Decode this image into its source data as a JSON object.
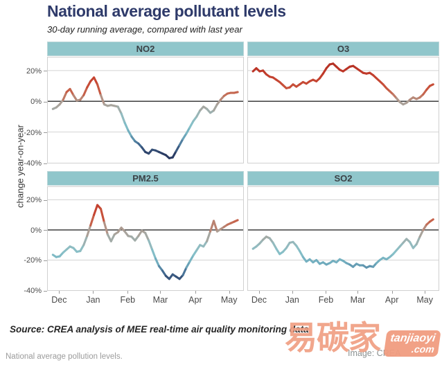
{
  "header": {
    "title": "National average pollutant levels",
    "subtitle": "30-day running average, compared with last year",
    "title_color": "#2E3A6A"
  },
  "figure": {
    "y_axis_label": "change year-on-year",
    "y_ticks": [
      {
        "label": "20%",
        "value": 20
      },
      {
        "label": "0%",
        "value": 0
      },
      {
        "label": "-20%",
        "value": -20
      },
      {
        "label": "-40%",
        "value": -40
      }
    ],
    "x_ticks": [
      "Dec",
      "Jan",
      "Feb",
      "Mar",
      "Apr",
      "May"
    ],
    "strip_color": "#90C6CB",
    "strip_text_color": "#3b4146",
    "gridline_color": "#d3d3d3",
    "zero_line_color": "#3d3d3d"
  },
  "chart_data": {
    "type": "line",
    "title": "National average pollutant levels",
    "subtitle": "30-day running average, compared with last year",
    "ylabel": "change year-on-year",
    "ylim": [
      -40,
      28.5
    ],
    "y_gridlines": [
      20,
      0,
      -20,
      -40
    ],
    "x_tick_labels": [
      "Dec",
      "Jan",
      "Feb",
      "Mar",
      "Apr",
      "May"
    ],
    "panels_order": [
      "NO2",
      "O3",
      "PM2.5",
      "SO2"
    ],
    "legend": "none",
    "color_encoding": "line segments colored by value: diverging dark blue (strong negative) to light blue, gray near zero, red for positive",
    "color_stops": [
      [
        -40,
        "#232F54"
      ],
      [
        -34,
        "#2C3E66"
      ],
      [
        -28,
        "#467096"
      ],
      [
        -22,
        "#70ACBE"
      ],
      [
        -15,
        "#86C0C8"
      ],
      [
        -9,
        "#96B9BC"
      ],
      [
        -4,
        "#A6A6A0"
      ],
      [
        0,
        "#AC9E94"
      ],
      [
        4,
        "#C3735C"
      ],
      [
        8,
        "#C8553E"
      ],
      [
        13,
        "#C64632"
      ],
      [
        20,
        "#BE3728"
      ],
      [
        28,
        "#AA2B20"
      ]
    ],
    "series": [
      {
        "name": "NO2",
        "values": [
          -5,
          -4,
          -2,
          1,
          6,
          8,
          4,
          0.5,
          1,
          4,
          9,
          13,
          15.5,
          11,
          4,
          -2,
          -3,
          -2.5,
          -3,
          -3.5,
          -8,
          -14,
          -19,
          -23,
          -26,
          -27.5,
          -30,
          -33,
          -34,
          -31.5,
          -32,
          -33,
          -34,
          -35,
          -37,
          -36.5,
          -32.5,
          -28.5,
          -24.5,
          -21,
          -17,
          -13,
          -10,
          -6,
          -3.5,
          -5,
          -7.5,
          -6,
          -2,
          1,
          3.5,
          5,
          5.5,
          5.5,
          6
        ]
      },
      {
        "name": "O3",
        "values": [
          19.5,
          21.5,
          19.5,
          20,
          17.5,
          16,
          15.5,
          14,
          12.5,
          10.5,
          8.5,
          9,
          11,
          9.5,
          11,
          12.5,
          11.5,
          13,
          14,
          13,
          15,
          18,
          21.5,
          24,
          24.5,
          22.5,
          20.5,
          19.5,
          21,
          22.5,
          23,
          21.5,
          20,
          18.5,
          18,
          18.5,
          17,
          15,
          13,
          11,
          8.5,
          6.5,
          4.5,
          2,
          -0.5,
          -2,
          -1,
          1,
          2.5,
          1.5,
          2.5,
          4.5,
          7.5,
          10,
          11
        ]
      },
      {
        "name": "PM2.5",
        "values": [
          -16.5,
          -18,
          -17.5,
          -15,
          -13,
          -11,
          -12,
          -14.5,
          -14,
          -10,
          -4,
          3,
          10,
          16.5,
          14,
          5,
          -3,
          -7.5,
          -3,
          -1.5,
          1.5,
          -1,
          -4,
          -4.5,
          -7,
          -4,
          -0.5,
          -2,
          -7,
          -13,
          -19,
          -24,
          -27,
          -30.5,
          -32.5,
          -29.5,
          -31,
          -32.5,
          -30,
          -25,
          -21,
          -17,
          -13.5,
          -10,
          -11,
          -7.5,
          -1,
          6,
          -1,
          0.5,
          2,
          3.5,
          4.5,
          5.5,
          6.5
        ]
      },
      {
        "name": "SO2",
        "values": [
          -12.5,
          -11,
          -9,
          -6.5,
          -4.5,
          -5.5,
          -8.5,
          -12.5,
          -16,
          -14.5,
          -12,
          -8.5,
          -8,
          -10.5,
          -14,
          -18,
          -21,
          -19.5,
          -21.5,
          -20,
          -22.5,
          -21.5,
          -23,
          -22,
          -20.5,
          -21.5,
          -19.5,
          -20.5,
          -22,
          -23,
          -24.5,
          -22.5,
          -23.5,
          -23.5,
          -25,
          -24,
          -24.5,
          -22,
          -20,
          -18.5,
          -19.5,
          -18,
          -16,
          -13.5,
          -11,
          -8.5,
          -6,
          -8,
          -12,
          -9.5,
          -4.5,
          0,
          3.5,
          5.5,
          7
        ]
      }
    ]
  },
  "footer": {
    "source": "Source: CREA analysis of MEE real-time air quality monitoring data",
    "image_credit": "Image: CREA",
    "caption": "National average pollution levels."
  },
  "watermark": {
    "chinese": "易碳家",
    "site": "tanjiaoyi",
    "tld": ".com",
    "color": "#F09C82"
  }
}
